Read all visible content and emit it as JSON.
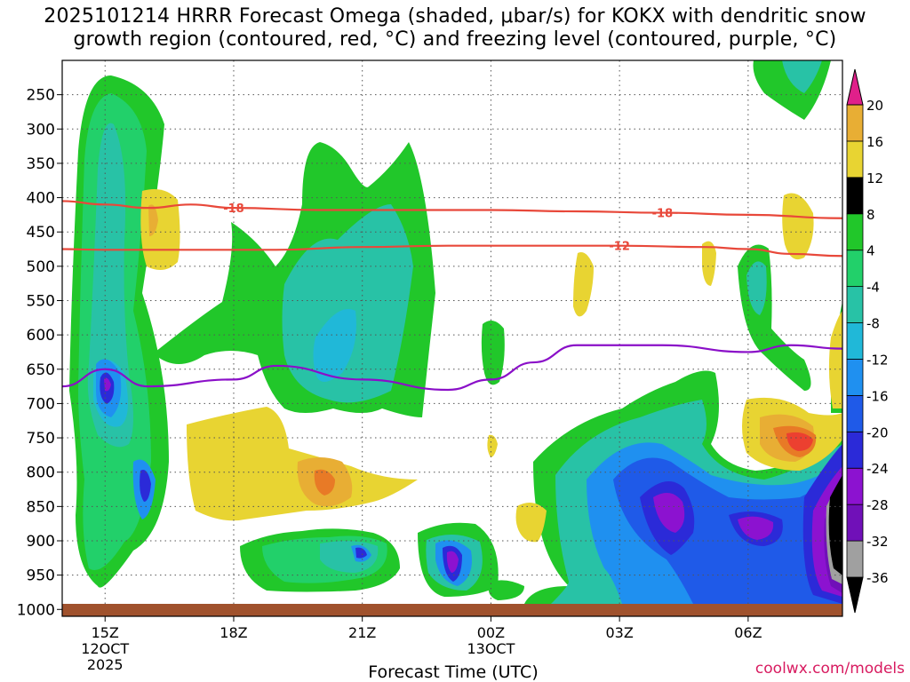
{
  "title_lines": [
    "2025101214 HRRR Forecast Omega (shaded, μbar/s) for KOKX with dendritic snow",
    "growth region (contoured, red, °C) and freezing level (contoured, purple, °C)"
  ],
  "credit": "coolwx.com/models",
  "colors": {
    "green_light": "#21c72a",
    "green_mid": "#22d06a",
    "teal": "#28c2a6",
    "cyan": "#20b8d8",
    "blue_light": "#1f90f0",
    "blue": "#1f5ae8",
    "blue_dark": "#2b2ad8",
    "purple": "#8c12d0",
    "purple_dark": "#7010b8",
    "gray": "#a0a0a0",
    "black": "#000000",
    "yellow": "#e8d432",
    "orange_light": "#e8ae34",
    "orange": "#e87a26",
    "red": "#ec4030",
    "magenta": "#e0208a",
    "ground": "#a0522d",
    "dgz_contour": "#e8483a",
    "freezing_contour": "#8a0fc8"
  },
  "chart_data": {
    "type": "time-height contour",
    "xlabel": "Forecast Time (UTC)",
    "x_ticks": [
      {
        "hour": 0,
        "label": "15Z",
        "sub": "12OCT",
        "sub2": "2025"
      },
      {
        "hour": 3,
        "label": "18Z"
      },
      {
        "hour": 6,
        "label": "21Z"
      },
      {
        "hour": 9,
        "label": "00Z",
        "sub": "13OCT"
      },
      {
        "hour": 12,
        "label": "03Z"
      },
      {
        "hour": 15,
        "label": "06Z"
      }
    ],
    "x_range_hours": [
      -1,
      17.2
    ],
    "y_axis": "pressure (hPa), reversed",
    "y_range": [
      1010,
      200
    ],
    "y_ticks": [
      250,
      300,
      350,
      400,
      450,
      500,
      550,
      600,
      650,
      700,
      750,
      800,
      850,
      900,
      950,
      1000
    ],
    "colorbar_levels": [
      "-36",
      "-32",
      "-28",
      "-24",
      "-20",
      "-16",
      "-12",
      "-8",
      "-4",
      "4",
      "8",
      "12",
      "16",
      "20"
    ],
    "colorbar_fill_order": [
      "black",
      "gray",
      "purple_dark",
      "purple",
      "blue_dark",
      "blue",
      "blue_light",
      "cyan",
      "teal",
      "green_mid",
      "green_light",
      "white",
      "yellow",
      "orange_light",
      "orange",
      "red",
      "magenta"
    ],
    "contours": [
      {
        "label": "-18",
        "points": [
          [
            -1,
            405
          ],
          [
            0,
            410
          ],
          [
            1,
            415
          ],
          [
            2,
            410
          ],
          [
            3,
            415
          ],
          [
            5,
            418
          ],
          [
            7,
            418
          ],
          [
            9,
            418
          ],
          [
            11,
            420
          ],
          [
            13,
            422
          ],
          [
            15,
            425
          ],
          [
            17.2,
            430
          ]
        ]
      },
      {
        "label": "-12",
        "points": [
          [
            -1,
            475
          ],
          [
            0,
            476
          ],
          [
            2,
            476
          ],
          [
            4,
            476
          ],
          [
            6,
            472
          ],
          [
            8,
            470
          ],
          [
            10,
            470
          ],
          [
            12,
            470
          ],
          [
            14,
            472
          ],
          [
            15,
            475
          ],
          [
            16,
            482
          ],
          [
            17.2,
            485
          ]
        ]
      },
      {
        "label": "freezing",
        "points": [
          [
            -1,
            675
          ],
          [
            0,
            650
          ],
          [
            1,
            675
          ],
          [
            3,
            665
          ],
          [
            4,
            645
          ],
          [
            6,
            665
          ],
          [
            8,
            680
          ],
          [
            9,
            665
          ],
          [
            10,
            640
          ],
          [
            11,
            615
          ],
          [
            13,
            615
          ],
          [
            15,
            625
          ],
          [
            16,
            615
          ],
          [
            17.2,
            620
          ]
        ]
      }
    ]
  }
}
